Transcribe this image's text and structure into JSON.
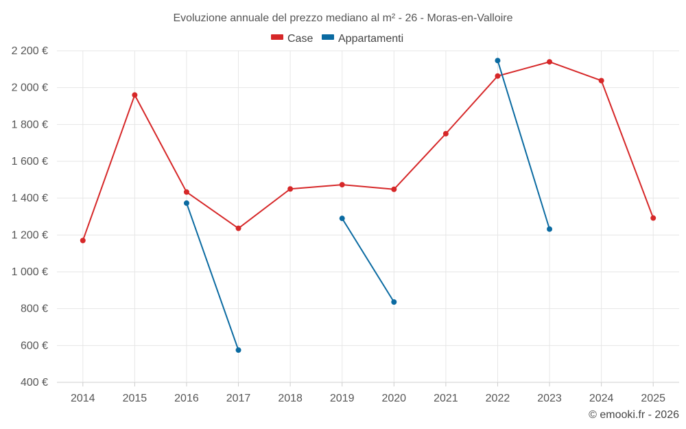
{
  "chart_data": {
    "type": "line",
    "title": "Evoluzione annuale del prezzo mediano al m² - 26 - Moras-en-Valloire",
    "xlabel": "",
    "ylabel": "",
    "categories": [
      "2014",
      "2015",
      "2016",
      "2017",
      "2018",
      "2019",
      "2020",
      "2021",
      "2022",
      "2023",
      "2024",
      "2025"
    ],
    "ylim": [
      400,
      2200
    ],
    "yticks": [
      400,
      600,
      800,
      1000,
      1200,
      1400,
      1600,
      1800,
      2000,
      2200
    ],
    "ytick_labels": [
      "400 €",
      "600 €",
      "800 €",
      "1 000 €",
      "1 200 €",
      "1 400 €",
      "1 600 €",
      "1 800 €",
      "2 000 €",
      "2 200 €"
    ],
    "grid": true,
    "legend_position": "top-center",
    "series": [
      {
        "name": "Case",
        "color": "#d62728",
        "values": [
          1170,
          1960,
          1433,
          1236,
          1450,
          1473,
          1448,
          1750,
          2063,
          2140,
          2038,
          1292
        ]
      },
      {
        "name": "Appartamenti",
        "color": "#0a6aa1",
        "values": [
          null,
          null,
          1373,
          575,
          null,
          1290,
          836,
          null,
          2147,
          1232,
          null,
          null
        ]
      }
    ]
  },
  "credit": "© emooki.fr - 2026"
}
